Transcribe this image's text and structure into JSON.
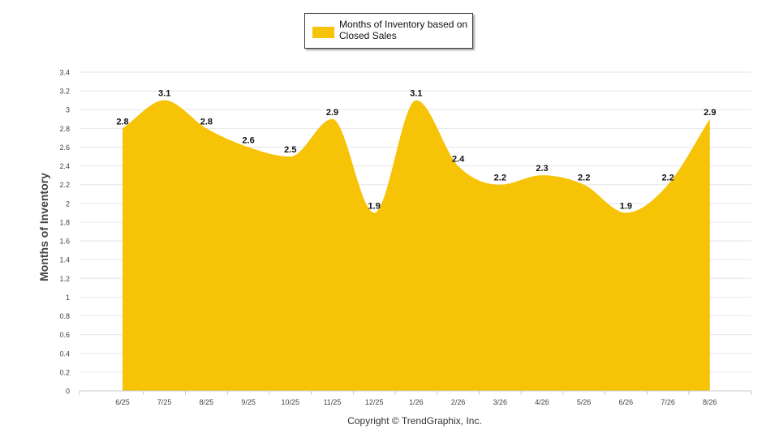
{
  "colors": {
    "area": "#F7C307",
    "grid": "#e6e6e6",
    "axis": "#c8c8c8",
    "tick_text": "#444444",
    "label_text": "#111111"
  },
  "legend": {
    "label": "Months of Inventory based on Closed Sales",
    "position": "top-center"
  },
  "footer": {
    "text": "Copyright © TrendGraphix, Inc."
  },
  "chart_data": {
    "type": "area",
    "title": "",
    "xlabel": "",
    "ylabel": "Months of Inventory",
    "ylim": [
      0,
      3.4
    ],
    "y_ticks": [
      "0",
      "0.2",
      "0.4",
      "0.6",
      "0.8",
      "1",
      "1.2",
      "1.4",
      "1.6",
      "1.8",
      "2",
      "2.2",
      "2.4",
      "2.6",
      "2.8",
      "3",
      "3.2",
      "3.4"
    ],
    "grid": true,
    "categories": [
      "6/25",
      "7/25",
      "8/25",
      "9/25",
      "10/25",
      "11/25",
      "12/25",
      "1/26",
      "2/26",
      "3/26",
      "4/26",
      "5/26",
      "6/26",
      "7/26",
      "8/26"
    ],
    "series": [
      {
        "name": "Months of Inventory based on Closed Sales",
        "values": [
          2.8,
          3.1,
          2.8,
          2.6,
          2.5,
          2.9,
          1.9,
          3.1,
          2.4,
          2.2,
          2.3,
          2.2,
          1.9,
          2.2,
          2.9
        ]
      }
    ],
    "data_labels": [
      "2.8",
      "3.1",
      "2.8",
      "2.6",
      "2.5",
      "2.9",
      "1.9",
      "3.1",
      "2.4",
      "2.2",
      "2.3",
      "2.2",
      "1.9",
      "2.2",
      "2.9"
    ]
  }
}
